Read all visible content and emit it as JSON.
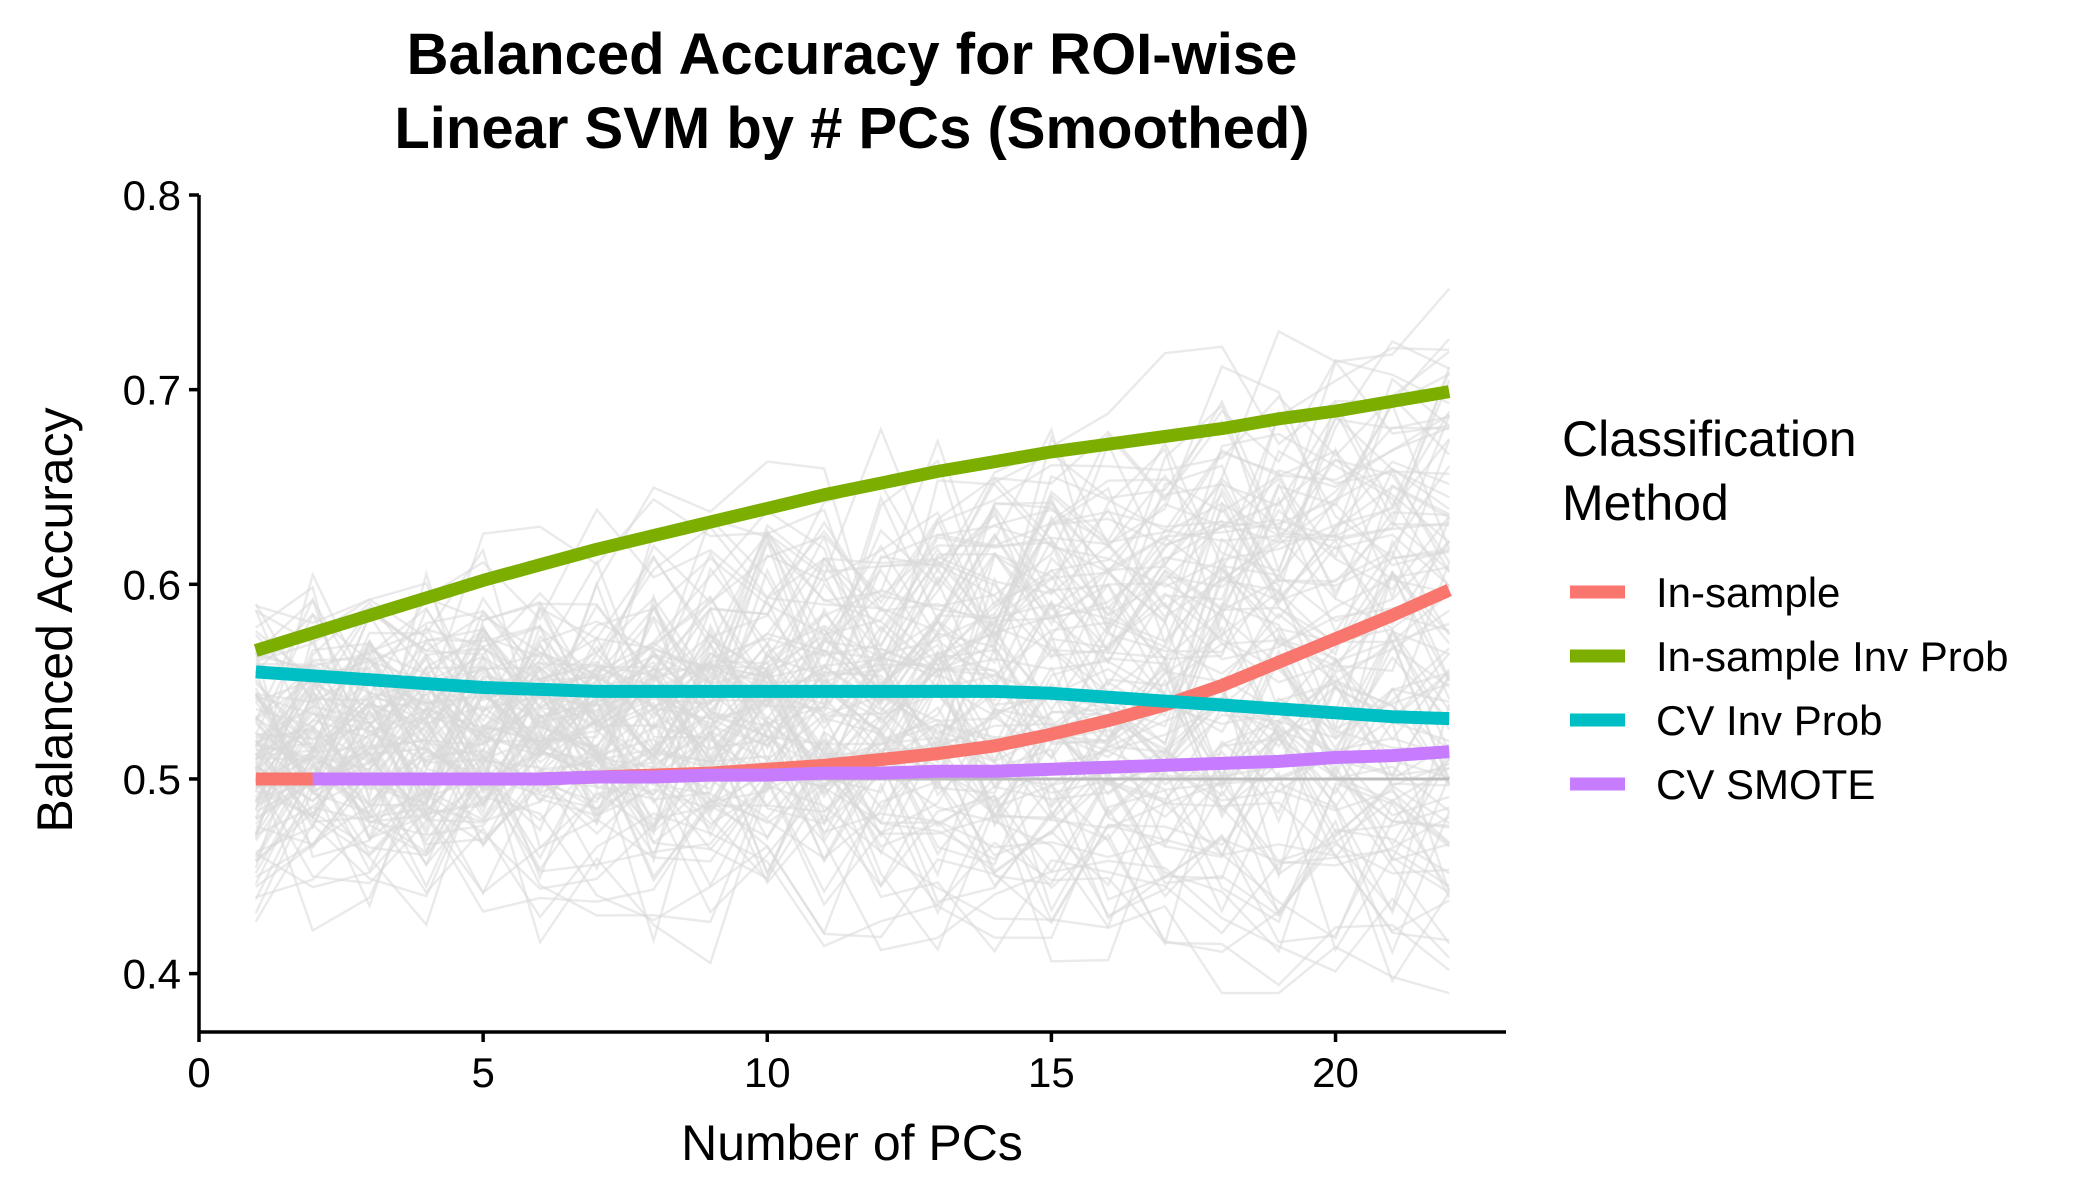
{
  "chart_data": {
    "type": "line",
    "title_lines": [
      "Balanced Accuracy for ROI-wise",
      "Linear SVM by # PCs (Smoothed)"
    ],
    "xlabel": "Number of PCs",
    "ylabel": "Balanced Accuracy",
    "xlim": [
      0,
      23
    ],
    "ylim": [
      0.37,
      0.8
    ],
    "x_ticks": [
      0,
      5,
      10,
      15,
      20
    ],
    "y_ticks": [
      0.4,
      0.5,
      0.6,
      0.7,
      0.8
    ],
    "x_tick_labels": [
      "0",
      "5",
      "10",
      "15",
      "20"
    ],
    "y_tick_labels": [
      "0.4",
      "0.5",
      "0.6",
      "0.7",
      "0.8"
    ],
    "grid": false,
    "legend": {
      "title_lines": [
        "Classification",
        "Method"
      ],
      "placement": "right"
    },
    "background_lines": {
      "color": "#d9d9d9",
      "description_count": 120,
      "x_range": [
        1,
        22
      ],
      "value_range": [
        0.39,
        0.78
      ]
    },
    "reference_line": {
      "y": 0.5,
      "color": "#bdbdbd"
    },
    "series": [
      {
        "name": "In-sample",
        "color": "#F8766D",
        "x": [
          1,
          2,
          3,
          4,
          5,
          6,
          7,
          8,
          9,
          10,
          11,
          12,
          13,
          14,
          15,
          16,
          17,
          18,
          19,
          20,
          21,
          22
        ],
        "values": [
          0.5,
          0.5,
          0.5,
          0.5,
          0.5,
          0.5,
          0.501,
          0.502,
          0.503,
          0.505,
          0.507,
          0.51,
          0.513,
          0.517,
          0.523,
          0.53,
          0.538,
          0.548,
          0.56,
          0.572,
          0.584,
          0.597
        ]
      },
      {
        "name": "In-sample Inv Prob",
        "color": "#7CAE00",
        "x": [
          1,
          2,
          3,
          4,
          5,
          6,
          7,
          8,
          9,
          10,
          11,
          12,
          13,
          14,
          15,
          16,
          17,
          18,
          19,
          20,
          21,
          22
        ],
        "values": [
          0.566,
          0.575,
          0.584,
          0.593,
          0.602,
          0.61,
          0.618,
          0.625,
          0.632,
          0.639,
          0.646,
          0.652,
          0.658,
          0.663,
          0.668,
          0.672,
          0.676,
          0.68,
          0.685,
          0.689,
          0.694,
          0.699
        ]
      },
      {
        "name": "CV Inv Prob",
        "color": "#00BFC4",
        "x": [
          1,
          2,
          3,
          4,
          5,
          6,
          7,
          8,
          9,
          10,
          11,
          12,
          13,
          14,
          15,
          16,
          17,
          18,
          19,
          20,
          21,
          22
        ],
        "values": [
          0.555,
          0.553,
          0.551,
          0.549,
          0.547,
          0.546,
          0.545,
          0.545,
          0.545,
          0.545,
          0.545,
          0.545,
          0.545,
          0.545,
          0.544,
          0.542,
          0.54,
          0.538,
          0.536,
          0.534,
          0.532,
          0.531
        ]
      },
      {
        "name": "CV SMOTE",
        "color": "#C77CFF",
        "x": [
          2,
          3,
          4,
          5,
          6,
          7,
          8,
          9,
          10,
          11,
          12,
          13,
          14,
          15,
          16,
          17,
          18,
          19,
          20,
          21,
          22
        ],
        "values": [
          0.5,
          0.5,
          0.5,
          0.5,
          0.5,
          0.501,
          0.501,
          0.502,
          0.502,
          0.503,
          0.503,
          0.504,
          0.504,
          0.505,
          0.506,
          0.507,
          0.508,
          0.509,
          0.511,
          0.512,
          0.514
        ]
      }
    ]
  }
}
